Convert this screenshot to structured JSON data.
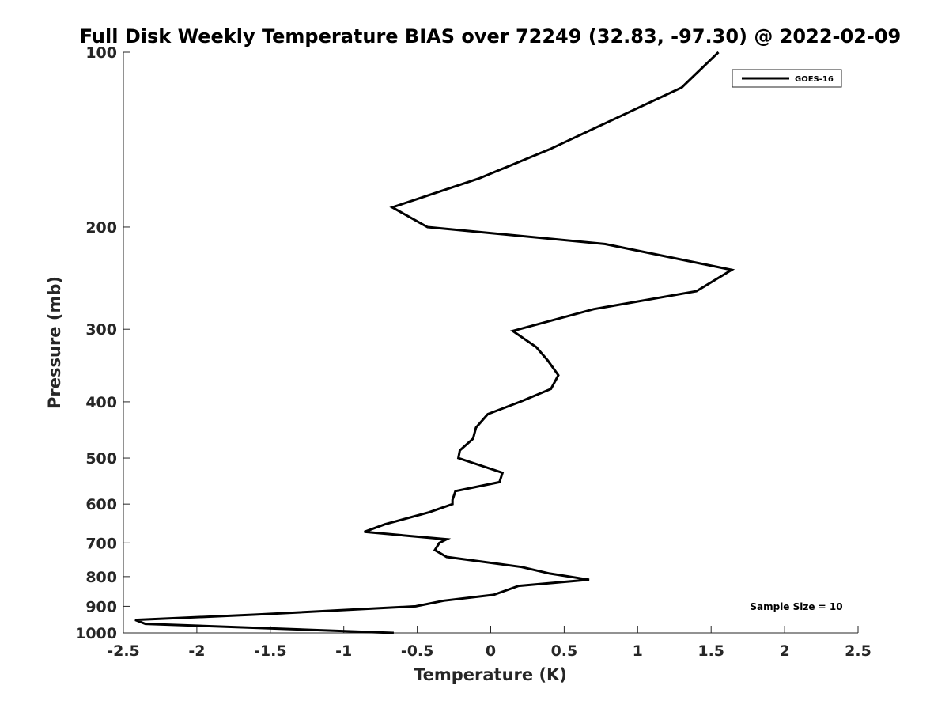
{
  "chart_data": {
    "type": "line",
    "title": "Full Disk Weekly Temperature BIAS over 72249 (32.83, -97.30) @ 2022-02-09",
    "xlabel": "Temperature (K)",
    "ylabel": "Pressure (mb)",
    "xlim": [
      -2.5,
      2.5
    ],
    "ylim": [
      1000,
      100
    ],
    "y_scale": "log",
    "x_ticks": [
      -2.5,
      -2,
      -1.5,
      -1,
      -0.5,
      0,
      0.5,
      1,
      1.5,
      2,
      2.5
    ],
    "x_tick_labels": [
      "-2.5",
      "-2",
      "-1.5",
      "-1",
      "-0.5",
      "0",
      "0.5",
      "1",
      "1.5",
      "2",
      "2.5"
    ],
    "y_ticks": [
      100,
      200,
      300,
      400,
      500,
      600,
      700,
      800,
      900,
      1000
    ],
    "y_tick_labels": [
      "100",
      "200",
      "300",
      "400",
      "500",
      "600",
      "700",
      "800",
      "900",
      "1000"
    ],
    "grid": false,
    "legend_position": "top-right",
    "series": [
      {
        "name": "GOES-16",
        "color": "#000000",
        "x": [
          1.55,
          1.3,
          0.4,
          -0.08,
          -0.67,
          -0.43,
          0.78,
          1.64,
          1.4,
          0.7,
          0.15,
          0.31,
          0.39,
          0.46,
          0.41,
          0.2,
          -0.02,
          -0.1,
          -0.12,
          -0.21,
          -0.22,
          0.08,
          0.06,
          -0.24,
          -0.26,
          -0.26,
          -0.42,
          -0.72,
          -0.86,
          -0.3,
          -0.35,
          -0.38,
          -0.3,
          0.21,
          0.4,
          0.67,
          0.19,
          0.02,
          -0.32,
          -0.51,
          -1.6,
          -2.42,
          -2.35,
          -0.66
        ],
        "y": [
          100,
          115,
          147,
          165,
          185,
          200,
          214,
          237,
          258,
          277,
          302,
          322,
          340,
          360,
          380,
          400,
          420,
          443,
          463,
          485,
          500,
          530,
          550,
          570,
          590,
          600,
          620,
          650,
          670,
          690,
          700,
          720,
          740,
          770,
          790,
          810,
          830,
          860,
          880,
          900,
          930,
          950,
          965,
          1000
        ]
      }
    ],
    "legend_entries": [
      "GOES-16"
    ],
    "annotation": "Sample Size = 10"
  }
}
